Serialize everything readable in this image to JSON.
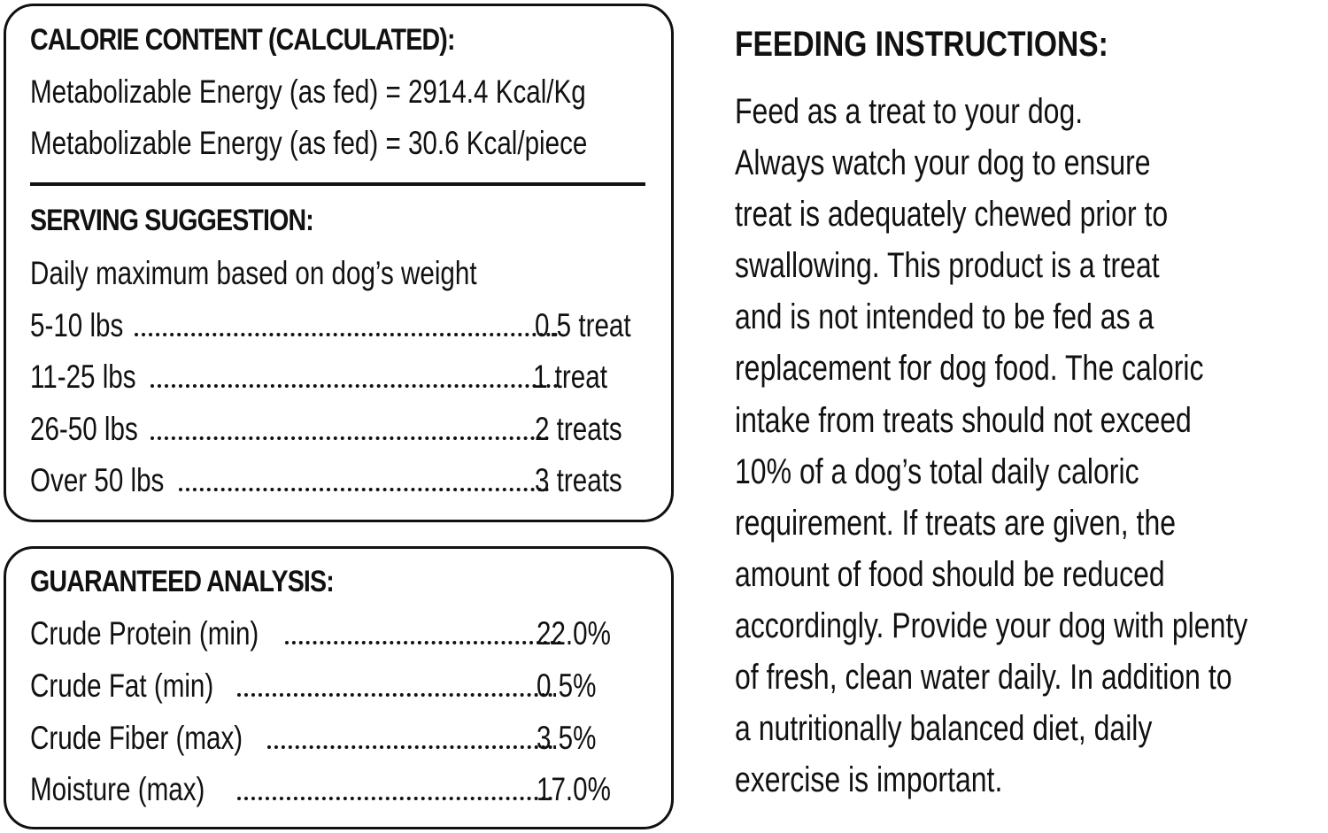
{
  "calorie": {
    "heading": "CALORIE CONTENT (CALCULATED):",
    "lines": [
      "Metabolizable Energy (as fed) = 2914.4 Kcal/Kg",
      "Metabolizable Energy (as fed) = 30.6 Kcal/piece"
    ]
  },
  "serving": {
    "heading": "SERVING SUGGESTION:",
    "intro": "Daily maximum based on dog’s weight",
    "rows": [
      {
        "label": "5-10 lbs",
        "value": "0.5 treat"
      },
      {
        "label": "11-25 lbs",
        "value": "1 treat"
      },
      {
        "label": "26-50 lbs",
        "value": "2 treats"
      },
      {
        "label": "Over 50 lbs",
        "value": "3 treats"
      }
    ]
  },
  "analysis": {
    "heading": "GUARANTEED ANALYSIS:",
    "rows": [
      {
        "label": "Crude Protein (min)",
        "value": "22.0%"
      },
      {
        "label": "Crude Fat (min)",
        "value": "0.5%"
      },
      {
        "label": "Crude Fiber (max)",
        "value": "3.5%"
      },
      {
        "label": "Moisture (max)",
        "value": "17.0%"
      }
    ]
  },
  "feeding": {
    "heading": "FEEDING INSTRUCTIONS:",
    "lines": [
      "Feed as a treat to your dog.",
      "Always watch your dog to ensure",
      "treat is adequately chewed prior to",
      "swallowing. This product is a treat",
      "and is not intended to be fed as a",
      "replacement for dog food. The caloric",
      "intake from treats should not exceed",
      "10% of a dog’s total daily caloric",
      "requirement. If treats are given, the",
      "amount of food should be reduced",
      "accordingly. Provide your dog with plenty",
      "of fresh, clean water daily. In addition to",
      "a nutritionally balanced diet, daily",
      "exercise is important."
    ]
  }
}
